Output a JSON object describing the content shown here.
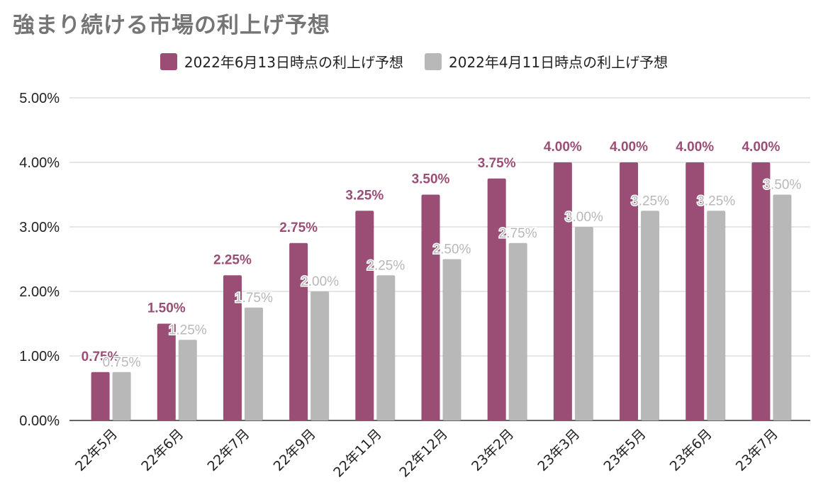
{
  "chart_data": {
    "type": "bar",
    "title": "強まり続ける市場の利上げ予想",
    "categories": [
      "22年5月",
      "22年6月",
      "22年7月",
      "22年9月",
      "22年11月",
      "22年12月",
      "23年2月",
      "23年3月",
      "23年5月",
      "23年6月",
      "23年7月"
    ],
    "series": [
      {
        "name": "2022年6月13日時点の利上げ予想",
        "color": "#9a4e76",
        "values": [
          0.75,
          1.5,
          2.25,
          2.75,
          3.25,
          3.5,
          3.75,
          4.0,
          4.0,
          4.0,
          4.0
        ],
        "labels": [
          "0.75%",
          "1.50%",
          "2.25%",
          "2.75%",
          "3.25%",
          "3.50%",
          "3.75%",
          "4.00%",
          "4.00%",
          "4.00%",
          "4.00%"
        ]
      },
      {
        "name": "2022年4月11日時点の利上げ予想",
        "color": "#b8b8b8",
        "values": [
          0.75,
          1.25,
          1.75,
          2.0,
          2.25,
          2.5,
          2.75,
          3.0,
          3.25,
          3.25,
          3.5
        ],
        "labels": [
          "0.75%",
          "1.25%",
          "1.75%",
          "2.00%",
          "2.25%",
          "2.50%",
          "2.75%",
          "3.00%",
          "3.25%",
          "3.25%",
          "3.50%"
        ]
      }
    ],
    "ylim": [
      0,
      5
    ],
    "yticks": [
      "0.00%",
      "1.00%",
      "2.00%",
      "3.00%",
      "4.00%",
      "5.00%"
    ],
    "ytick_values": [
      0,
      1,
      2,
      3,
      4,
      5
    ],
    "legend_position": "top",
    "grid": true
  }
}
